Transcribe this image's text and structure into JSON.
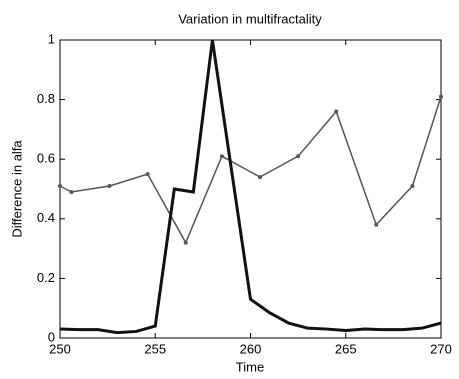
{
  "chart_data": {
    "type": "line",
    "title": "Variation in multifractality",
    "xlabel": "Time",
    "ylabel": "Difference in alfa",
    "xlim": [
      250,
      270
    ],
    "xticks": [
      250,
      255,
      260,
      265,
      270
    ],
    "ylim": [
      0,
      1
    ],
    "yticks": [
      0,
      0.2,
      0.4,
      0.6,
      0.8,
      1
    ],
    "grid": false,
    "series": [
      {
        "color": "#555555",
        "line_width": 1.5,
        "marker": true,
        "x": [
          250,
          250.6,
          252.6,
          254.6,
          256.6,
          258.5,
          260.5,
          262.5,
          264.5,
          266.6,
          268.5,
          270
        ],
        "values": [
          0.51,
          0.49,
          0.51,
          0.55,
          0.32,
          0.61,
          0.54,
          0.61,
          0.76,
          0.38,
          0.51,
          0.81
        ]
      },
      {
        "color": "#111111",
        "line_width": 3,
        "marker": false,
        "x": [
          250,
          251,
          252,
          253,
          254,
          255,
          256,
          257,
          258,
          260,
          261,
          262,
          263,
          264,
          265,
          266,
          267,
          268,
          269,
          270
        ],
        "values": [
          0.03,
          0.028,
          0.028,
          0.018,
          0.022,
          0.04,
          0.5,
          0.49,
          1,
          0.13,
          0.085,
          0.05,
          0.033,
          0.03,
          0.025,
          0.03,
          0.028,
          0.028,
          0.033,
          0.05
        ]
      }
    ]
  }
}
